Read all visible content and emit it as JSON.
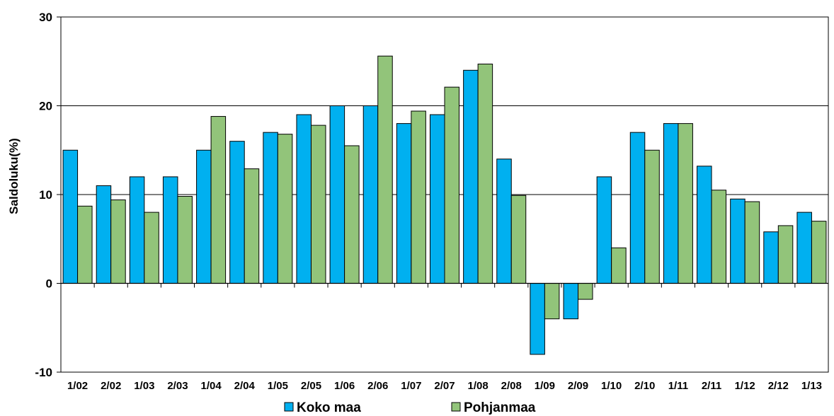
{
  "chart_data": {
    "type": "bar",
    "ylabel": "Saldoluku(%)",
    "xlabel": "",
    "ylim": [
      -10,
      30
    ],
    "yticks": [
      -10,
      0,
      10,
      20,
      30
    ],
    "grid": true,
    "legend_position": "bottom",
    "categories": [
      "1/02",
      "2/02",
      "1/03",
      "2/03",
      "1/04",
      "2/04",
      "1/05",
      "2/05",
      "1/06",
      "2/06",
      "1/07",
      "2/07",
      "1/08",
      "2/08",
      "1/09",
      "2/09",
      "1/10",
      "2/10",
      "1/11",
      "2/11",
      "1/12",
      "2/12",
      "1/13"
    ],
    "series": [
      {
        "name": "Koko maa",
        "color": "#00B0F0",
        "values": [
          15,
          11,
          12,
          12,
          15,
          16,
          17,
          19,
          20,
          20,
          18,
          19,
          24,
          14,
          -8,
          -4,
          12,
          17,
          18,
          13.2,
          9.5,
          5.8,
          8
        ]
      },
      {
        "name": "Pohjanmaa",
        "color": "#92C47A",
        "values": [
          8.7,
          9.4,
          8,
          9.8,
          18.8,
          12.9,
          16.8,
          17.8,
          15.5,
          25.6,
          19.4,
          22.1,
          24.7,
          9.9,
          -4,
          -1.8,
          4,
          15,
          18,
          10.5,
          9.2,
          6.5,
          7
        ]
      }
    ]
  }
}
